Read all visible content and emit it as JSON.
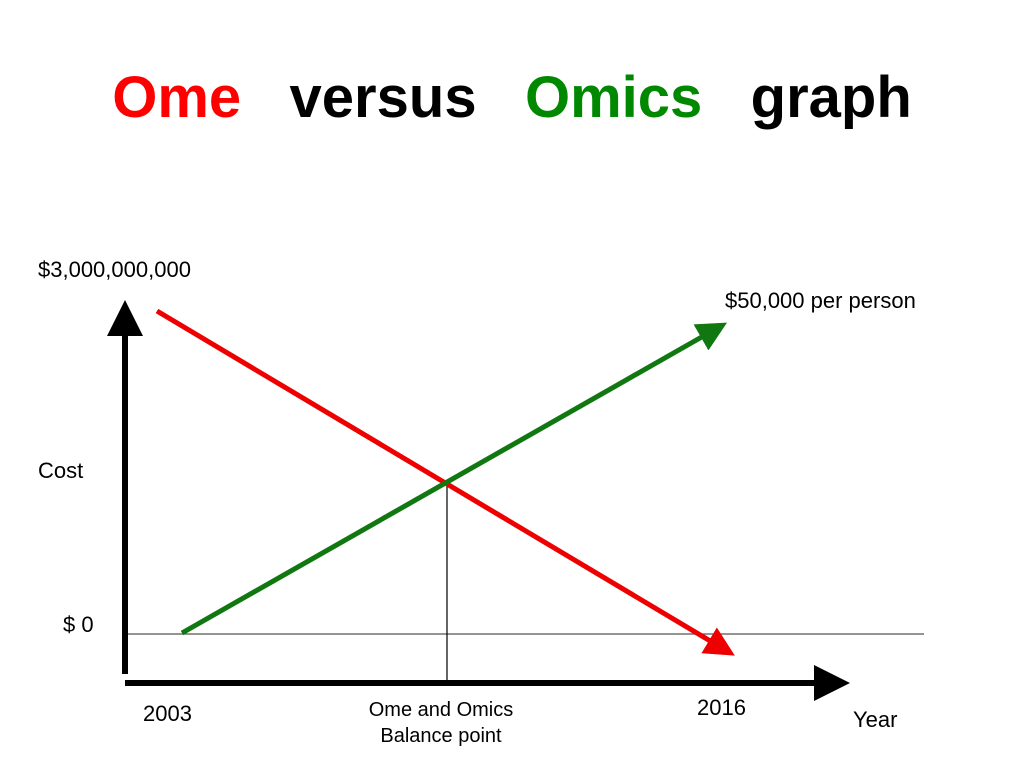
{
  "title": {
    "part1": "Ome",
    "part2": "versus",
    "part3": "Omics",
    "part4": "graph",
    "part1_color": "#ff0000",
    "part3_color": "#008800"
  },
  "y_axis": {
    "label": "Cost",
    "top_value": "$3,000,000,000",
    "zero_value": "$ 0"
  },
  "x_axis": {
    "label": "Year",
    "start": "2003",
    "end": "2016"
  },
  "lines": {
    "ome": {
      "color": "#ee0000"
    },
    "omics": {
      "color": "#117711",
      "end_label": "$50,000 per person"
    }
  },
  "balance_point": {
    "line1": "Ome and Omics",
    "line2": "Balance point"
  }
}
